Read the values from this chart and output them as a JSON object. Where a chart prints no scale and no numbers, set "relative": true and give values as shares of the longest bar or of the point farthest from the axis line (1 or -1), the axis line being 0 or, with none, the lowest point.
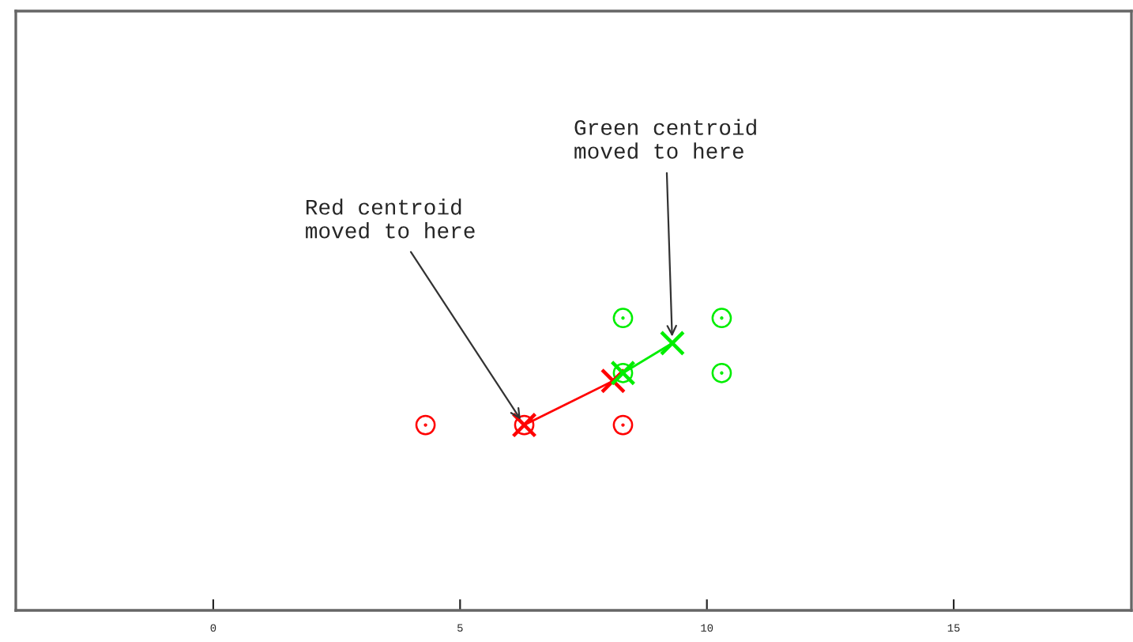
{
  "chart_data": {
    "type": "scatter",
    "relative": true,
    "xlim": [
      -4,
      18.6
    ],
    "xticks": [
      0,
      5,
      10,
      15
    ],
    "series": [
      {
        "type": "scatter",
        "marker": "circle",
        "color": "#ff0000",
        "x": [
          4.3,
          6.3,
          8.3
        ],
        "values": [
          0.634,
          0.634,
          0.634
        ]
      },
      {
        "type": "scatter",
        "marker": "circle",
        "color": "#00ee00",
        "x": [
          8.3,
          10.3,
          8.3,
          10.3
        ],
        "values": [
          1,
          1,
          0.812,
          0.812
        ]
      },
      {
        "type": "line",
        "marker": "cross",
        "color": "#ff0000",
        "x": [
          8.1,
          6.3
        ],
        "values": [
          0.785,
          0.634
        ]
      },
      {
        "type": "line",
        "marker": "cross",
        "color": "#00ee00",
        "x": [
          8.3,
          9.3
        ],
        "values": [
          0.812,
          0.914
        ]
      }
    ],
    "annotations": [
      {
        "text": "Red centroid\nmoved to here",
        "x": 6.3,
        "y": 0.634
      },
      {
        "text": "Green centroid\nmoved to here",
        "x": 9.3,
        "y": 0.914
      }
    ]
  }
}
